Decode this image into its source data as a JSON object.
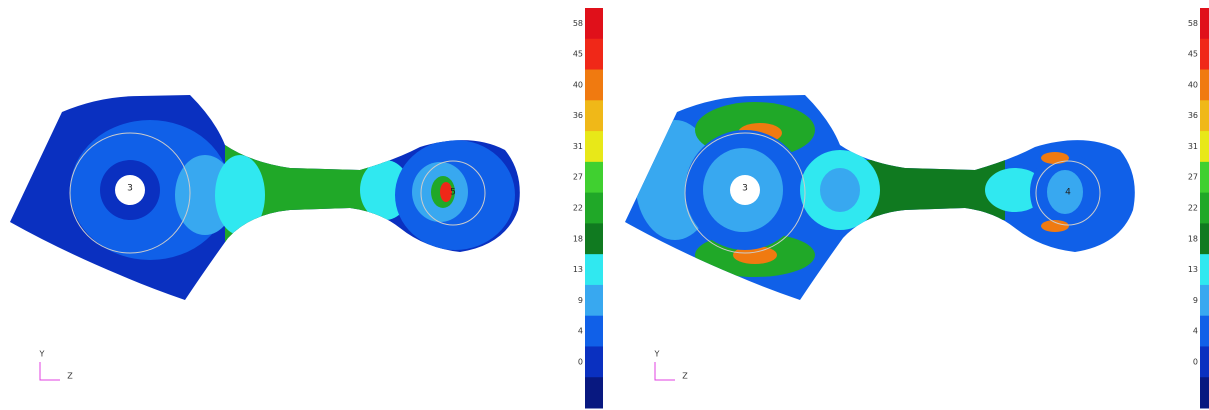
{
  "panels": [
    {
      "colorbar": {
        "labels": [
          "58",
          "45",
          "40",
          "36",
          "31",
          "27",
          "22",
          "18",
          "13",
          "9",
          "4",
          "0"
        ],
        "colors": [
          "#e0101a",
          "#f02818",
          "#f07a10",
          "#f0b818",
          "#e8e818",
          "#40d030",
          "#20a828",
          "#107a20",
          "#30e8f0",
          "#38a8f0",
          "#1060e8",
          "#0a30c0",
          "#081880"
        ]
      },
      "nodes": [
        "3",
        "5"
      ],
      "axis": {
        "y": "Y",
        "x": "Z"
      }
    },
    {
      "colorbar": {
        "labels": [
          "58",
          "45",
          "40",
          "36",
          "31",
          "27",
          "22",
          "18",
          "13",
          "9",
          "4",
          "0"
        ],
        "colors": [
          "#e0101a",
          "#f02818",
          "#f07a10",
          "#f0b818",
          "#e8e818",
          "#40d030",
          "#20a828",
          "#107a20",
          "#30e8f0",
          "#38a8f0",
          "#1060e8",
          "#0a30c0",
          "#081880"
        ]
      },
      "nodes": [
        "3",
        "4"
      ],
      "axis": {
        "y": "Y",
        "x": "Z"
      }
    }
  ]
}
